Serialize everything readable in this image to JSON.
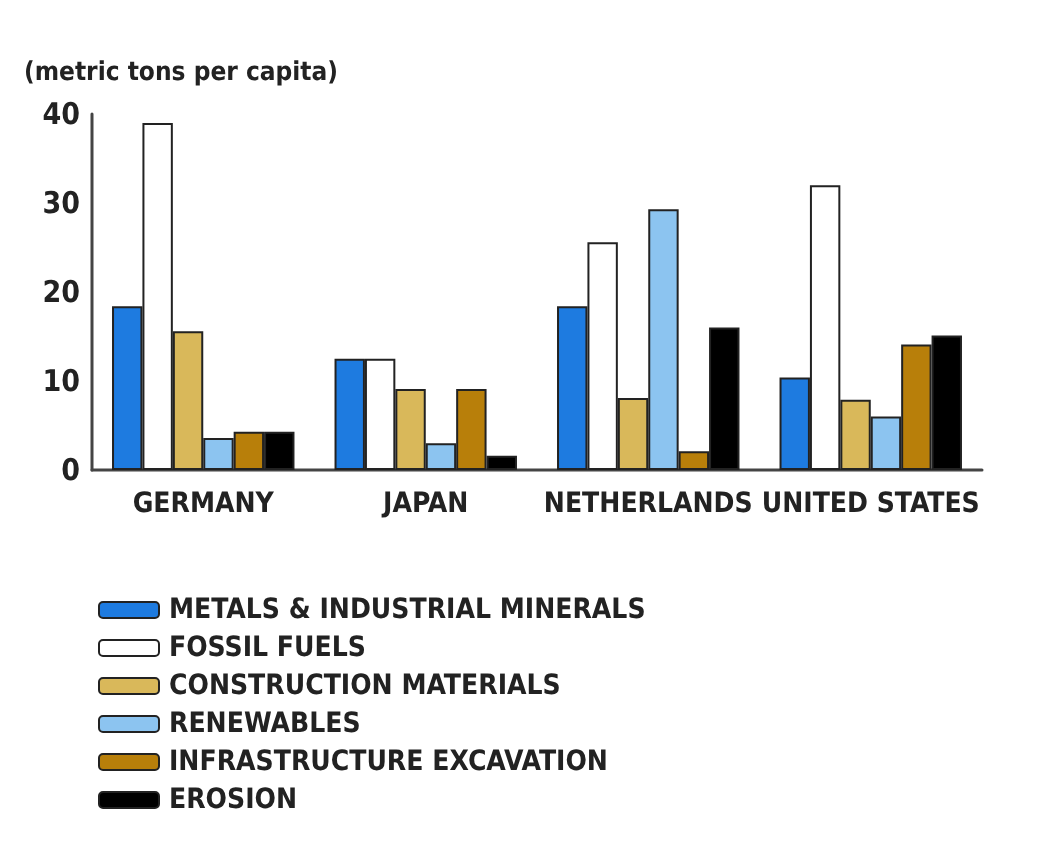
{
  "chart_data": {
    "type": "bar",
    "ylabel": "(metric tons per capita)",
    "categories": [
      "GERMANY",
      "JAPAN",
      "NETHERLANDS",
      "UNITED STATES"
    ],
    "series": [
      {
        "name": "METALS & INDUSTRIAL MINERALS",
        "color": "#1e7be0",
        "values": [
          18.4,
          12.5,
          18.4,
          10.4
        ]
      },
      {
        "name": "FOSSIL FUELS",
        "color": "#ffffff",
        "values": [
          39,
          12.5,
          25.6,
          32
        ]
      },
      {
        "name": "CONSTRUCTION MATERIALS",
        "color": "#d9b85a",
        "values": [
          15.6,
          9.1,
          8.1,
          7.9
        ]
      },
      {
        "name": "RENEWABLES",
        "color": "#8cc4f0",
        "values": [
          3.6,
          3,
          29.3,
          6
        ]
      },
      {
        "name": "INFRASTRUCTURE EXCAVATION",
        "color": "#b87f0a",
        "values": [
          4.3,
          9.1,
          2.1,
          14.1
        ]
      },
      {
        "name": "EROSION",
        "color": "#000000",
        "values": [
          4.3,
          1.6,
          16,
          15.1
        ]
      }
    ],
    "ylim": [
      0,
      40
    ],
    "yticks": [
      0,
      10,
      20,
      30,
      40
    ],
    "grid": false,
    "legend": "bottom left"
  }
}
